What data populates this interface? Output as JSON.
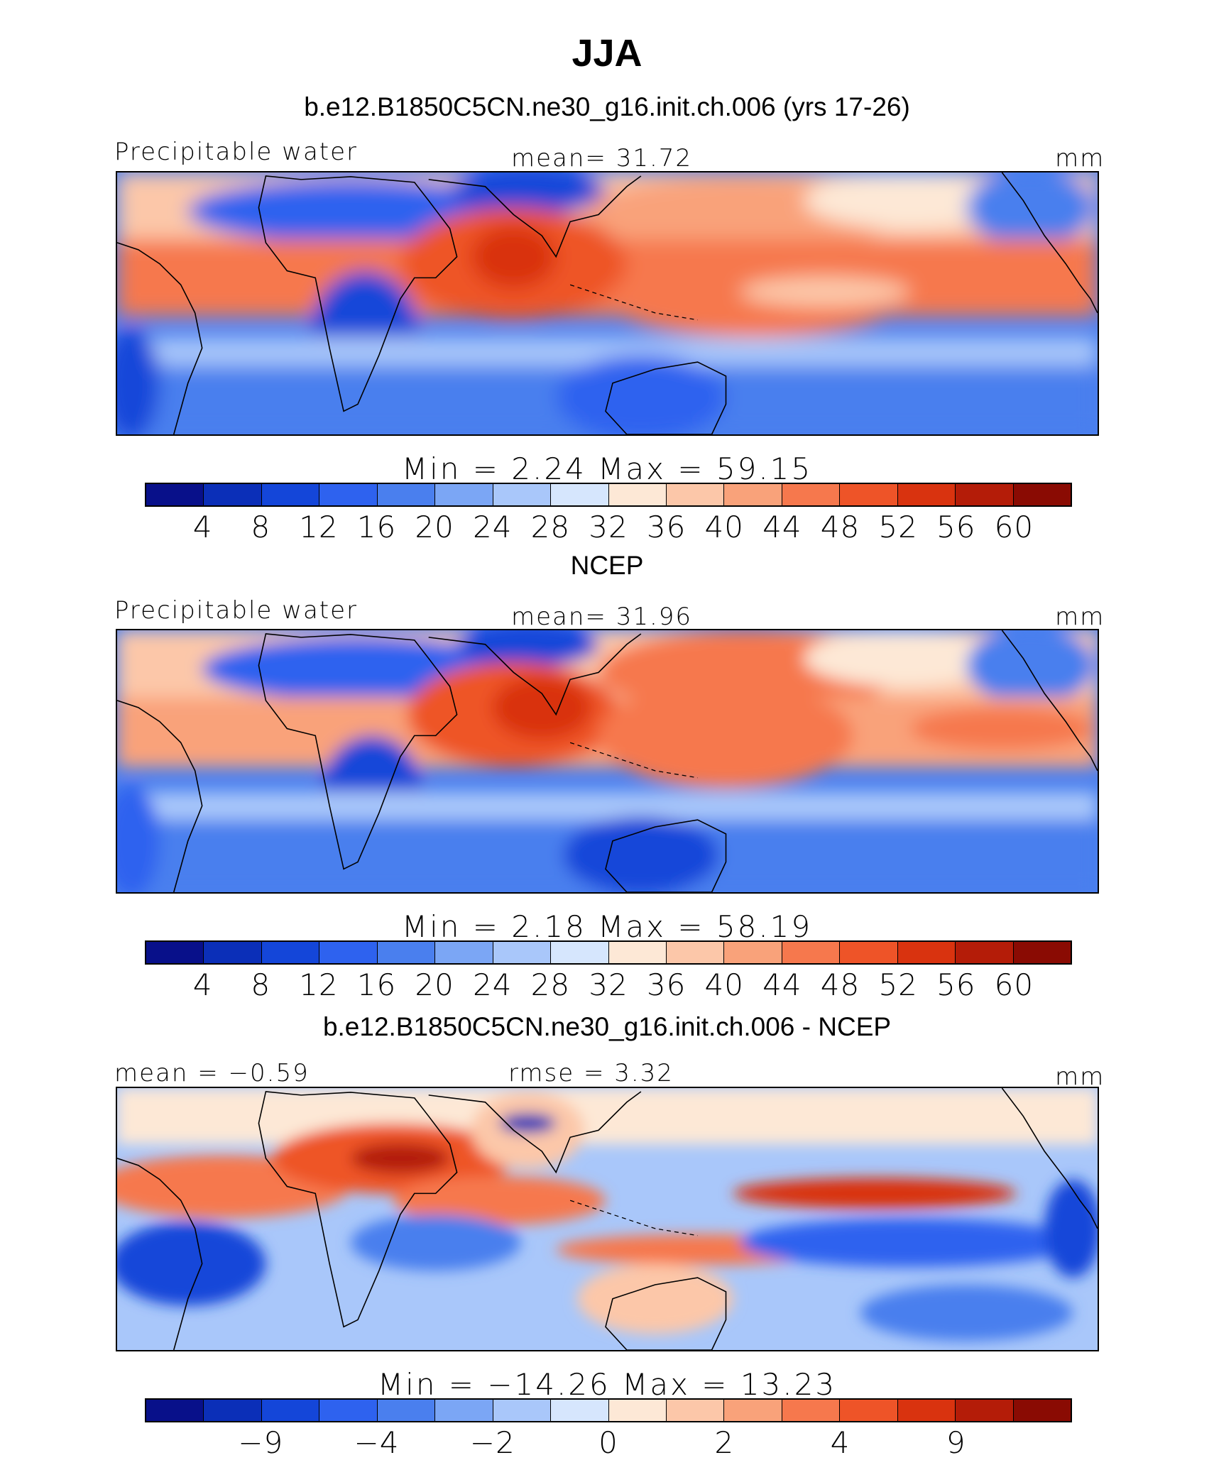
{
  "title": "JJA",
  "colorbar_colors": [
    "#08108a",
    "#0b2fb8",
    "#1446d9",
    "#2e62ef",
    "#4a7fee",
    "#7ba6f5",
    "#a9c7fa",
    "#d6e6fd",
    "#fde8d6",
    "#fcc7a9",
    "#f9a27a",
    "#f6784d",
    "#ee5428",
    "#d9330f",
    "#b41c08",
    "#8a0b03"
  ],
  "chart_data": [
    {
      "type": "heatmap",
      "title": "b.e12.B1850C5CN.ne30_g16.init.ch.006 (yrs 17-26)",
      "left_label": "Precipitable water",
      "center_label": "mean=   31.72",
      "units": "mm",
      "minmax": "Min  =     2.24  Max  =    59.15",
      "colorbar_ticks": [
        "4",
        "8",
        "12",
        "16",
        "20",
        "24",
        "28",
        "32",
        "36",
        "40",
        "44",
        "48",
        "52",
        "56",
        "60"
      ],
      "mean": 31.72,
      "min": 2.24,
      "max": 59.15
    },
    {
      "type": "heatmap",
      "title": "NCEP",
      "left_label": "Precipitable water",
      "center_label": "mean=   31.96",
      "units": "mm",
      "minmax": "Min  =     2.18  Max  =    58.19",
      "colorbar_ticks": [
        "4",
        "8",
        "12",
        "16",
        "20",
        "24",
        "28",
        "32",
        "36",
        "40",
        "44",
        "48",
        "52",
        "56",
        "60"
      ],
      "mean": 31.96,
      "min": 2.18,
      "max": 58.19
    },
    {
      "type": "heatmap",
      "title": "b.e12.B1850C5CN.ne30_g16.init.ch.006 - NCEP",
      "left_label": "mean  =   −0.59",
      "center_label": "rmse  =      3.32",
      "units": "mm",
      "minmax": "Min  = −14.26  Max  =    13.23",
      "colorbar_ticks": [
        "−9",
        "−4",
        "−2",
        "0",
        "2",
        "4",
        "9"
      ],
      "colorbar_tick_bins": [
        2,
        4,
        6,
        8,
        10,
        12,
        14
      ],
      "mean": -0.59,
      "rmse": 3.32,
      "min": -14.26,
      "max": 13.23
    }
  ]
}
